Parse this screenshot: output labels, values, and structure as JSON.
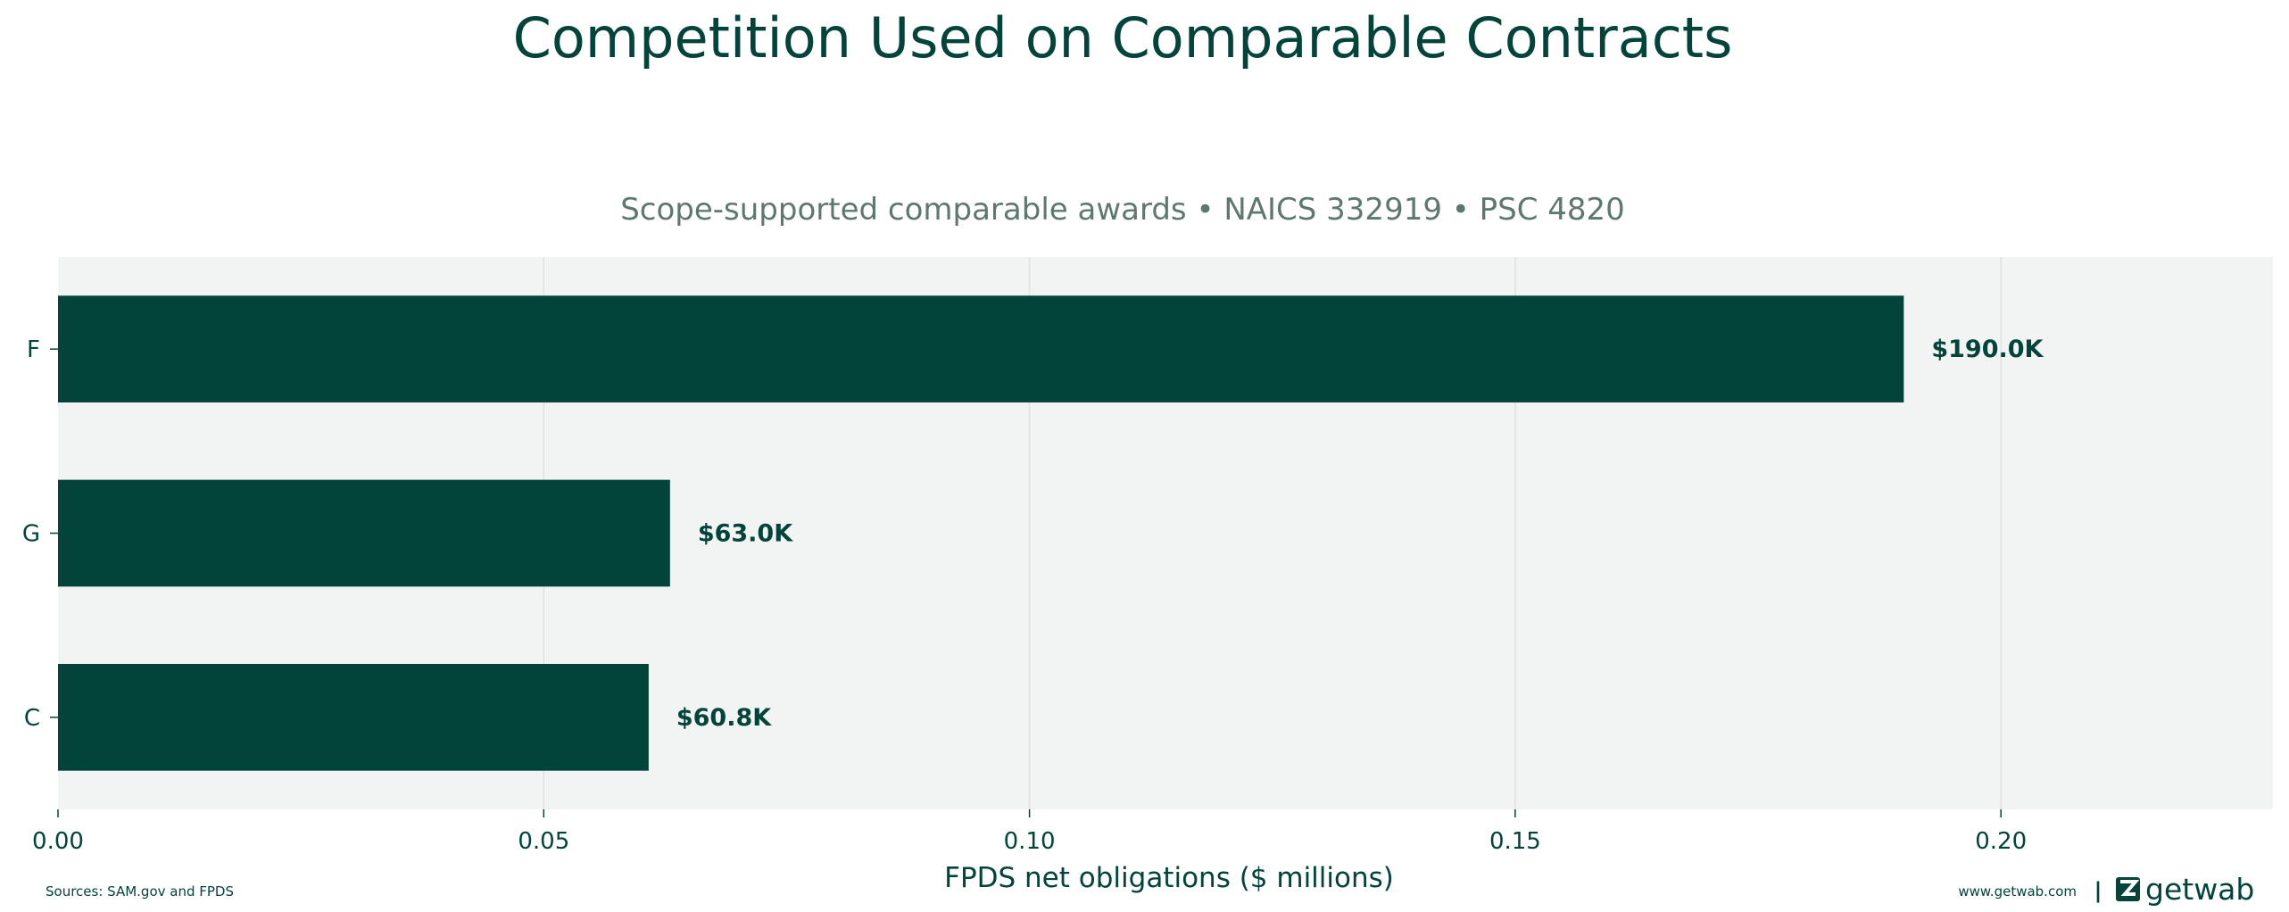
{
  "chart_data": {
    "type": "bar",
    "orientation": "horizontal",
    "title": "Competition Used on Comparable Contracts",
    "subtitle": "Scope-supported comparable awards • NAICS 332919 • PSC 4820",
    "xlabel": "FPDS net obligations ($ millions)",
    "ylabel": "",
    "categories": [
      "F",
      "G",
      "C"
    ],
    "values": [
      0.19,
      0.063,
      0.0608
    ],
    "data_labels": [
      "$190.0K",
      "$63.0K",
      "$60.8K"
    ],
    "xlim": [
      0,
      0.228
    ],
    "xticks": [
      0.0,
      0.05,
      0.1,
      0.15,
      0.2
    ],
    "xtick_labels": [
      "0.00",
      "0.05",
      "0.10",
      "0.15",
      "0.20"
    ],
    "grid": "vertical",
    "legend": "none"
  },
  "footer": {
    "sources": "Sources: SAM.gov and FPDS",
    "website": "www.getwab.com",
    "separator": "|",
    "brand": "getwab",
    "logo_icon": "getwab-logo-icon"
  },
  "colors": {
    "bar": "#03443a",
    "text": "#03443a",
    "subtitle": "#5e7871",
    "plot_bg": "#f2f4f3",
    "grid": "#dde3e1"
  }
}
